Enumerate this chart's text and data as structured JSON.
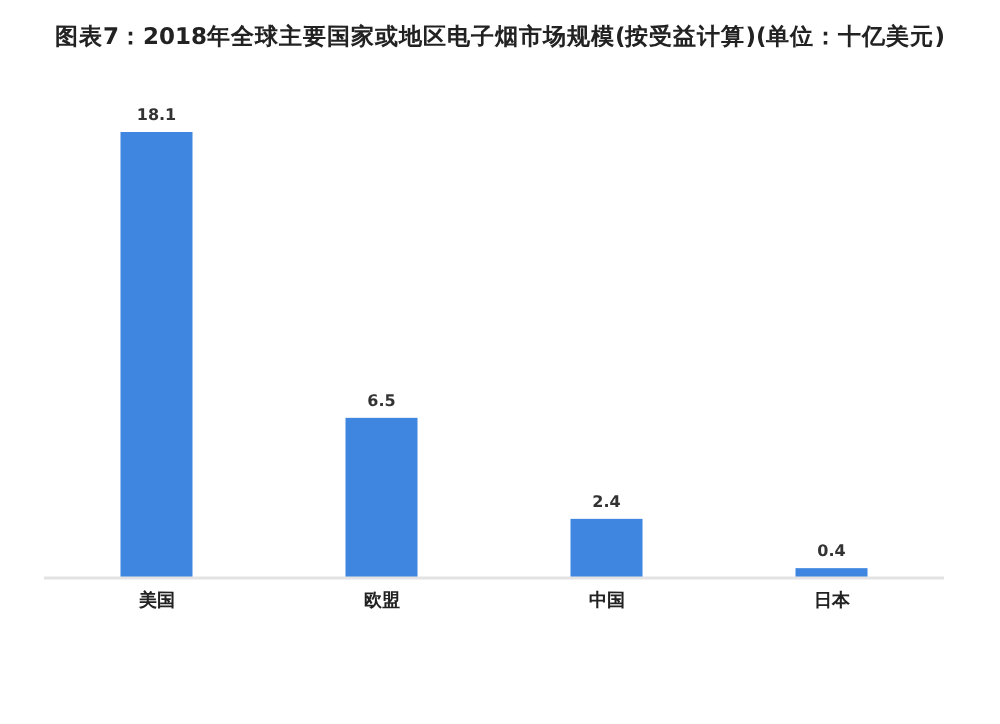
{
  "chart_data": {
    "type": "bar",
    "title": "图表7：2018年全球主要国家或地区电子烟市场规模(按受益计算)(单位：十亿美元)",
    "categories": [
      "美国",
      "欧盟",
      "中国",
      "日本"
    ],
    "values": [
      18.1,
      6.5,
      2.4,
      0.4
    ],
    "color": "#3f86e0",
    "data_labels": true
  }
}
